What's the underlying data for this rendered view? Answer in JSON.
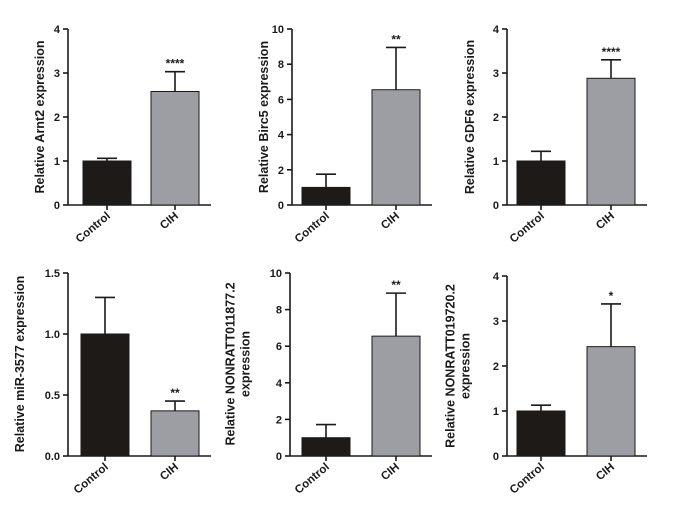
{
  "colors": {
    "control": "#1e1a17",
    "cih": "#9c9ea3",
    "axis": "#1a1a1a"
  },
  "chart_data": [
    {
      "type": "bar",
      "ylabel_lines": [
        "Relative Arnt2 expression"
      ],
      "categories": [
        "Control",
        "CIH"
      ],
      "values": [
        1.0,
        2.58
      ],
      "errors": [
        0.06,
        0.45
      ],
      "significance": [
        "",
        "****"
      ],
      "ylim": [
        0,
        4
      ],
      "ticks": [
        0,
        1,
        2,
        3,
        4
      ],
      "tick_labels": [
        "0",
        "1",
        "2",
        "3",
        "4"
      ]
    },
    {
      "type": "bar",
      "ylabel_lines": [
        "Relative Birc5 expression"
      ],
      "categories": [
        "Control",
        "CIH"
      ],
      "values": [
        1.0,
        6.55
      ],
      "errors": [
        0.75,
        2.4
      ],
      "significance": [
        "",
        "**"
      ],
      "ylim": [
        0,
        10
      ],
      "ticks": [
        0,
        2,
        4,
        6,
        8,
        10
      ],
      "tick_labels": [
        "0",
        "2",
        "4",
        "6",
        "8",
        "10"
      ]
    },
    {
      "type": "bar",
      "ylabel_lines": [
        "Relative GDF6 expression"
      ],
      "categories": [
        "Control",
        "CIH"
      ],
      "values": [
        1.0,
        2.88
      ],
      "errors": [
        0.22,
        0.42
      ],
      "significance": [
        "",
        "****"
      ],
      "ylim": [
        0,
        4
      ],
      "ticks": [
        0,
        1,
        2,
        3,
        4
      ],
      "tick_labels": [
        "0",
        "1",
        "2",
        "3",
        "4"
      ]
    },
    {
      "type": "bar",
      "ylabel_lines": [
        "Relative miR-3577 expression"
      ],
      "categories": [
        "Control",
        "CIH"
      ],
      "values": [
        1.0,
        0.37
      ],
      "errors": [
        0.3,
        0.08
      ],
      "significance": [
        "",
        "**"
      ],
      "ylim": [
        0,
        1.5
      ],
      "ticks": [
        0,
        0.5,
        1.0,
        1.5
      ],
      "tick_labels": [
        "0.0",
        "0.5",
        "1.0",
        "1.5"
      ]
    },
    {
      "type": "bar",
      "ylabel_lines": [
        "Relative NONRATT011877.2",
        "expression"
      ],
      "categories": [
        "Control",
        "CIH"
      ],
      "values": [
        1.0,
        6.55
      ],
      "errors": [
        0.72,
        2.35
      ],
      "significance": [
        "",
        "**"
      ],
      "ylim": [
        0,
        10
      ],
      "ticks": [
        0,
        2,
        4,
        6,
        8,
        10
      ],
      "tick_labels": [
        "0",
        "2",
        "4",
        "6",
        "8",
        "10"
      ]
    },
    {
      "type": "bar",
      "ylabel_lines": [
        "Relative NONRATT019720.2",
        "expression"
      ],
      "categories": [
        "Control",
        "CIH"
      ],
      "values": [
        1.0,
        2.43
      ],
      "errors": [
        0.13,
        0.95
      ],
      "significance": [
        "",
        "*"
      ],
      "ylim": [
        0,
        4
      ],
      "ticks": [
        0,
        1,
        2,
        3,
        4
      ],
      "tick_labels": [
        "0",
        "1",
        "2",
        "3",
        "4"
      ]
    }
  ]
}
